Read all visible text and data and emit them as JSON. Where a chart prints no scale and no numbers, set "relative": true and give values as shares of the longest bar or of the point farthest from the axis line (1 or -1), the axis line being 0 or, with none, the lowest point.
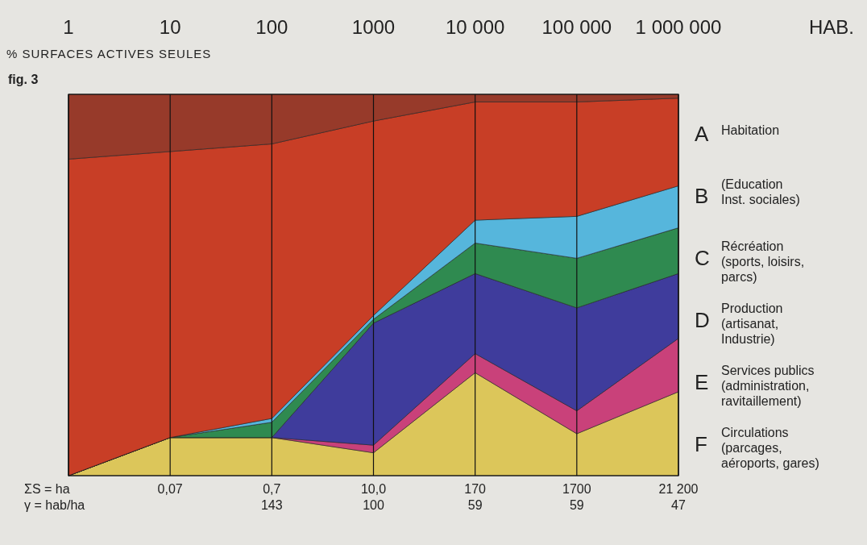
{
  "chart_data": {
    "type": "area",
    "stacked": true,
    "relative": true,
    "grid": "x",
    "legend": "right",
    "xlabel": "HAB.",
    "ylabel": "% SURFACES ACTIVES SEULES",
    "categories": [
      "1",
      "10",
      "100",
      "1000",
      "10 000",
      "100 000",
      "1 000 000"
    ],
    "series": [
      {
        "name": "F Circulations\n(parcages,\naéroports, gares)",
        "color": "#dcc65a",
        "values": [
          0,
          0.1,
          0.1,
          0.06,
          0.27,
          0.11,
          0.22
        ]
      },
      {
        "name": "E Services publics\n(administration,\nravitaillement)",
        "color": "#c9417a",
        "values": [
          0,
          0,
          0,
          0.02,
          0.05,
          0.06,
          0.14
        ]
      },
      {
        "name": "D Production\n(artisanat,\nIndustrie)",
        "color": "#3f3c9c",
        "values": [
          0,
          0,
          0,
          0.32,
          0.21,
          0.27,
          0.17
        ]
      },
      {
        "name": "C Récréation\n(sports, loisirs,\nparcs)",
        "color": "#2f8a50",
        "values": [
          0,
          0,
          0.04,
          0.01,
          0.08,
          0.13,
          0.12
        ]
      },
      {
        "name": "B (Education\nInst. sociales)",
        "color": "#56b6dc",
        "values": [
          0,
          0,
          0.01,
          0.01,
          0.06,
          0.11,
          0.11
        ]
      },
      {
        "name": "A Habitation",
        "color": "#c83e26",
        "values": [
          0.83,
          0.75,
          0.72,
          0.51,
          0.31,
          0.3,
          0.23
        ]
      },
      {
        "color": "#973a2a",
        "values": [
          0.17,
          0.15,
          0.13,
          0.07,
          0.02,
          0.02,
          0.01
        ]
      }
    ],
    "annotations": [
      "fig. 3",
      "ΣS = ha",
      "0,07",
      "0,7",
      "10,0",
      "170",
      "1700",
      "21 200",
      "γ = hab/ha",
      "143",
      "100",
      "59",
      "59",
      "47"
    ]
  }
}
